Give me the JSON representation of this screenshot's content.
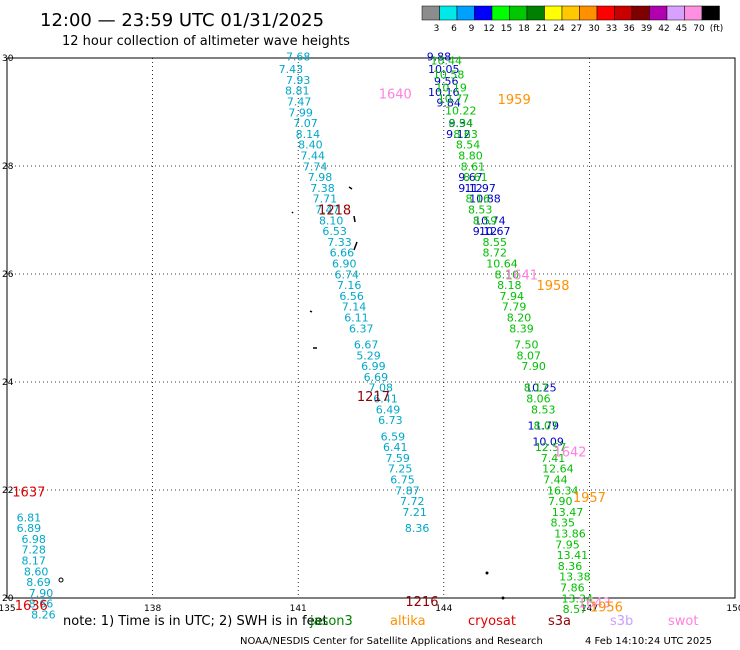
{
  "header": {
    "title": "12:00 — 23:59 UTC 01/31/2025",
    "subtitle": "12 hour collection of altimeter wave heights"
  },
  "colorbar": {
    "labels": [
      "3",
      "6",
      "9",
      "12",
      "15",
      "18",
      "21",
      "24",
      "27",
      "30",
      "33",
      "36",
      "39",
      "42",
      "45",
      "70",
      "(ft)"
    ],
    "colors": [
      "#8c8c8c",
      "#00e8e8",
      "#00a0ff",
      "#0000ff",
      "#00ff00",
      "#00c800",
      "#008000",
      "#ffff00",
      "#ffc800",
      "#ff9000",
      "#ff0000",
      "#c80000",
      "#800000",
      "#b000b0",
      "#d8a0ff",
      "#ff90e0",
      "#000000"
    ]
  },
  "chart_data": {
    "type": "scatter",
    "xlim": [
      135,
      150
    ],
    "ylim": [
      20,
      30
    ],
    "xticks": [
      "135",
      "138",
      "141",
      "144",
      "147",
      "150"
    ],
    "yticks": [
      "30",
      "28",
      "26",
      "24",
      "22",
      "20"
    ],
    "grid": true,
    "tracks": [
      {
        "name": "cyan-track",
        "color": "#00a8c8",
        "points": [
          {
            "x": 141.0,
            "y": 29.95,
            "v": "7.68"
          },
          {
            "x": 140.85,
            "y": 29.72,
            "v": "7.43"
          },
          {
            "x": 141.0,
            "y": 29.52,
            "v": "7.93"
          },
          {
            "x": 140.98,
            "y": 29.32,
            "v": "8.81"
          },
          {
            "x": 141.02,
            "y": 29.12,
            "v": "7.47"
          },
          {
            "x": 141.05,
            "y": 28.92,
            "v": "7.99"
          },
          {
            "x": 141.15,
            "y": 28.72,
            "v": "7.07"
          },
          {
            "x": 141.2,
            "y": 28.52,
            "v": "8.14"
          },
          {
            "x": 141.25,
            "y": 28.32,
            "v": "8.40"
          },
          {
            "x": 141.3,
            "y": 28.12,
            "v": "7.44"
          },
          {
            "x": 141.35,
            "y": 27.92,
            "v": "7.74"
          },
          {
            "x": 141.45,
            "y": 27.72,
            "v": "7.98"
          },
          {
            "x": 141.5,
            "y": 27.52,
            "v": "7.38"
          },
          {
            "x": 141.55,
            "y": 27.32,
            "v": "7.71"
          },
          {
            "x": 141.6,
            "y": 27.12,
            "v": "7.47"
          },
          {
            "x": 141.68,
            "y": 26.92,
            "v": "8.10"
          },
          {
            "x": 141.75,
            "y": 26.72,
            "v": "6.53"
          },
          {
            "x": 141.85,
            "y": 26.52,
            "v": "7.33"
          },
          {
            "x": 141.9,
            "y": 26.32,
            "v": "6.66"
          },
          {
            "x": 141.95,
            "y": 26.12,
            "v": "6.90"
          },
          {
            "x": 142.0,
            "y": 25.92,
            "v": "6.74"
          },
          {
            "x": 142.05,
            "y": 25.72,
            "v": "7.16"
          },
          {
            "x": 142.1,
            "y": 25.52,
            "v": "6.56"
          },
          {
            "x": 142.15,
            "y": 25.32,
            "v": "7.14"
          },
          {
            "x": 142.2,
            "y": 25.12,
            "v": "6.11"
          },
          {
            "x": 142.3,
            "y": 24.92,
            "v": "6.37"
          },
          {
            "x": 142.4,
            "y": 24.62,
            "v": "6.67"
          },
          {
            "x": 142.45,
            "y": 24.42,
            "v": "5.29"
          },
          {
            "x": 142.55,
            "y": 24.22,
            "v": "6.99"
          },
          {
            "x": 142.6,
            "y": 24.02,
            "v": "6.69"
          },
          {
            "x": 142.7,
            "y": 23.82,
            "v": "7.08"
          },
          {
            "x": 142.8,
            "y": 23.62,
            "v": "6.41"
          },
          {
            "x": 142.85,
            "y": 23.42,
            "v": "6.49"
          },
          {
            "x": 142.9,
            "y": 23.22,
            "v": "6.73"
          },
          {
            "x": 142.95,
            "y": 22.92,
            "v": "6.59"
          },
          {
            "x": 143.0,
            "y": 22.72,
            "v": "6.41"
          },
          {
            "x": 143.05,
            "y": 22.52,
            "v": "7.59"
          },
          {
            "x": 143.1,
            "y": 22.32,
            "v": "7.25"
          },
          {
            "x": 143.15,
            "y": 22.12,
            "v": "6.75"
          },
          {
            "x": 143.25,
            "y": 21.92,
            "v": "7.87"
          },
          {
            "x": 143.35,
            "y": 21.72,
            "v": "7.72"
          },
          {
            "x": 143.4,
            "y": 21.52,
            "v": "7.21"
          },
          {
            "x": 143.45,
            "y": 21.22,
            "v": "8.36"
          }
        ]
      },
      {
        "name": "left-track",
        "color": "#00a8c8",
        "points": [
          {
            "x": 135.45,
            "y": 21.42,
            "v": "6.81"
          },
          {
            "x": 135.45,
            "y": 21.22,
            "v": "6.89"
          },
          {
            "x": 135.55,
            "y": 21.02,
            "v": "6.98"
          },
          {
            "x": 135.55,
            "y": 20.82,
            "v": "7.28"
          },
          {
            "x": 135.55,
            "y": 20.62,
            "v": "8.17"
          },
          {
            "x": 135.6,
            "y": 20.42,
            "v": "8.60"
          },
          {
            "x": 135.65,
            "y": 20.22,
            "v": "8.69"
          },
          {
            "x": 135.7,
            "y": 20.02,
            "v": "7.90"
          },
          {
            "x": 135.7,
            "y": 19.82,
            "v": "8.66"
          },
          {
            "x": 135.75,
            "y": 19.62,
            "v": "8.26"
          }
        ]
      },
      {
        "name": "navy-track",
        "color": "#0000c8",
        "points": [
          {
            "x": 143.9,
            "y": 29.95,
            "v": "9.88"
          },
          {
            "x": 144.0,
            "y": 29.72,
            "v": "10.05"
          },
          {
            "x": 144.05,
            "y": 29.5,
            "v": "9.56"
          },
          {
            "x": 144.0,
            "y": 29.3,
            "v": "10.16"
          },
          {
            "x": 144.1,
            "y": 29.1,
            "v": "9.84"
          },
          {
            "x": 144.35,
            "y": 28.72,
            "v": "9.34"
          },
          {
            "x": 144.3,
            "y": 28.52,
            "v": "9.12"
          },
          {
            "x": 144.55,
            "y": 27.72,
            "v": "9.67"
          },
          {
            "x": 144.55,
            "y": 27.52,
            "v": "9.12"
          },
          {
            "x": 144.75,
            "y": 27.52,
            "v": "11.97"
          },
          {
            "x": 144.85,
            "y": 27.32,
            "v": "10.88"
          },
          {
            "x": 144.95,
            "y": 26.92,
            "v": "10.74"
          },
          {
            "x": 144.85,
            "y": 26.72,
            "v": "9.12"
          },
          {
            "x": 145.05,
            "y": 26.72,
            "v": "10.67"
          },
          {
            "x": 146.0,
            "y": 23.82,
            "v": "10.25"
          },
          {
            "x": 146.05,
            "y": 23.12,
            "v": "11.79"
          },
          {
            "x": 146.15,
            "y": 22.82,
            "v": "10.09"
          }
        ]
      },
      {
        "name": "green-track",
        "color": "#00c000",
        "points": [
          {
            "x": 144.05,
            "y": 29.88,
            "v": "10.44"
          },
          {
            "x": 144.1,
            "y": 29.62,
            "v": "10.58"
          },
          {
            "x": 144.15,
            "y": 29.38,
            "v": "10.19"
          },
          {
            "x": 144.2,
            "y": 29.18,
            "v": "10.77"
          },
          {
            "x": 144.35,
            "y": 28.95,
            "v": "10.22"
          },
          {
            "x": 144.35,
            "y": 28.72,
            "v": "8.94"
          },
          {
            "x": 144.45,
            "y": 28.52,
            "v": "8.63"
          },
          {
            "x": 144.5,
            "y": 28.32,
            "v": "8.54"
          },
          {
            "x": 144.55,
            "y": 28.12,
            "v": "8.80"
          },
          {
            "x": 144.6,
            "y": 27.92,
            "v": "8.61"
          },
          {
            "x": 144.65,
            "y": 27.72,
            "v": "8.61"
          },
          {
            "x": 144.7,
            "y": 27.32,
            "v": "8.16"
          },
          {
            "x": 144.75,
            "y": 27.12,
            "v": "8.53"
          },
          {
            "x": 144.85,
            "y": 26.92,
            "v": "8.59"
          },
          {
            "x": 145.05,
            "y": 26.52,
            "v": "8.55"
          },
          {
            "x": 145.05,
            "y": 26.32,
            "v": "8.72"
          },
          {
            "x": 145.2,
            "y": 26.12,
            "v": "10.64"
          },
          {
            "x": 145.3,
            "y": 25.92,
            "v": "8.10"
          },
          {
            "x": 145.35,
            "y": 25.72,
            "v": "8.18"
          },
          {
            "x": 145.4,
            "y": 25.52,
            "v": "7.94"
          },
          {
            "x": 145.45,
            "y": 25.32,
            "v": "7.79"
          },
          {
            "x": 145.55,
            "y": 25.12,
            "v": "8.20"
          },
          {
            "x": 145.6,
            "y": 24.92,
            "v": "8.39"
          },
          {
            "x": 145.7,
            "y": 24.62,
            "v": "7.50"
          },
          {
            "x": 145.75,
            "y": 24.42,
            "v": "8.07"
          },
          {
            "x": 145.85,
            "y": 24.22,
            "v": "7.90"
          },
          {
            "x": 145.9,
            "y": 23.82,
            "v": "8.17"
          },
          {
            "x": 145.95,
            "y": 23.62,
            "v": "8.06"
          },
          {
            "x": 146.05,
            "y": 23.42,
            "v": "8.53"
          },
          {
            "x": 146.1,
            "y": 23.12,
            "v": "8.07"
          },
          {
            "x": 146.2,
            "y": 22.72,
            "v": "12.57"
          },
          {
            "x": 146.25,
            "y": 22.52,
            "v": "7.41"
          },
          {
            "x": 146.35,
            "y": 22.32,
            "v": "12.64"
          },
          {
            "x": 146.3,
            "y": 22.12,
            "v": "7.44"
          },
          {
            "x": 146.45,
            "y": 21.92,
            "v": "16.34"
          },
          {
            "x": 146.4,
            "y": 21.72,
            "v": "7.90"
          },
          {
            "x": 146.55,
            "y": 21.52,
            "v": "13.47"
          },
          {
            "x": 146.45,
            "y": 21.32,
            "v": "8.35"
          },
          {
            "x": 146.6,
            "y": 21.12,
            "v": "13.86"
          },
          {
            "x": 146.55,
            "y": 20.92,
            "v": "7.95"
          },
          {
            "x": 146.65,
            "y": 20.72,
            "v": "13.41"
          },
          {
            "x": 146.6,
            "y": 20.52,
            "v": "8.36"
          },
          {
            "x": 146.7,
            "y": 20.32,
            "v": "13.38"
          },
          {
            "x": 146.65,
            "y": 20.12,
            "v": "7.86"
          },
          {
            "x": 146.75,
            "y": 19.92,
            "v": "13.34"
          },
          {
            "x": 146.7,
            "y": 19.72,
            "v": "8.57"
          }
        ]
      }
    ],
    "pass_labels": [
      {
        "x": 143.0,
        "y": 29.25,
        "t": "1640",
        "color": "#ff80e0"
      },
      {
        "x": 145.45,
        "y": 29.15,
        "t": "1959",
        "color": "#ff9000"
      },
      {
        "x": 141.75,
        "y": 27.1,
        "t": "1218",
        "color": "#900000"
      },
      {
        "x": 145.6,
        "y": 25.9,
        "t": "1641",
        "color": "#ff80e0"
      },
      {
        "x": 146.25,
        "y": 25.7,
        "t": "1958",
        "color": "#ff9000"
      },
      {
        "x": 142.55,
        "y": 23.65,
        "t": "1217",
        "color": "#900000"
      },
      {
        "x": 146.6,
        "y": 22.62,
        "t": "1642",
        "color": "#ff80e0"
      },
      {
        "x": 147.0,
        "y": 21.78,
        "t": "1957",
        "color": "#ff9000"
      },
      {
        "x": 135.45,
        "y": 21.88,
        "t": "1637",
        "color": "#e00000"
      },
      {
        "x": 135.5,
        "y": 19.78,
        "t": "1636",
        "color": "#e00000"
      },
      {
        "x": 143.55,
        "y": 19.85,
        "t": "1216",
        "color": "#900000"
      },
      {
        "x": 147.1,
        "y": 19.82,
        "t": "1643",
        "color": "#ff80e0"
      },
      {
        "x": 147.35,
        "y": 19.75,
        "t": "1956",
        "color": "#ff9000"
      }
    ]
  },
  "notes": {
    "note": "note:  1) Time is in UTC;  2) SWH is in feet",
    "satellites": [
      {
        "name": "jason3",
        "color": "#008000"
      },
      {
        "name": "altika",
        "color": "#ff9000"
      },
      {
        "name": "cryosat",
        "color": "#e00000"
      },
      {
        "name": "s3a",
        "color": "#900000"
      },
      {
        "name": "s3b",
        "color": "#c8a0ff"
      },
      {
        "name": "swot",
        "color": "#ff80e0"
      }
    ]
  },
  "footer": {
    "org": "NOAA/NESDIS Center for Satellite Applications and Research",
    "timestamp": "4 Feb 14:10:24 UTC 2025"
  }
}
